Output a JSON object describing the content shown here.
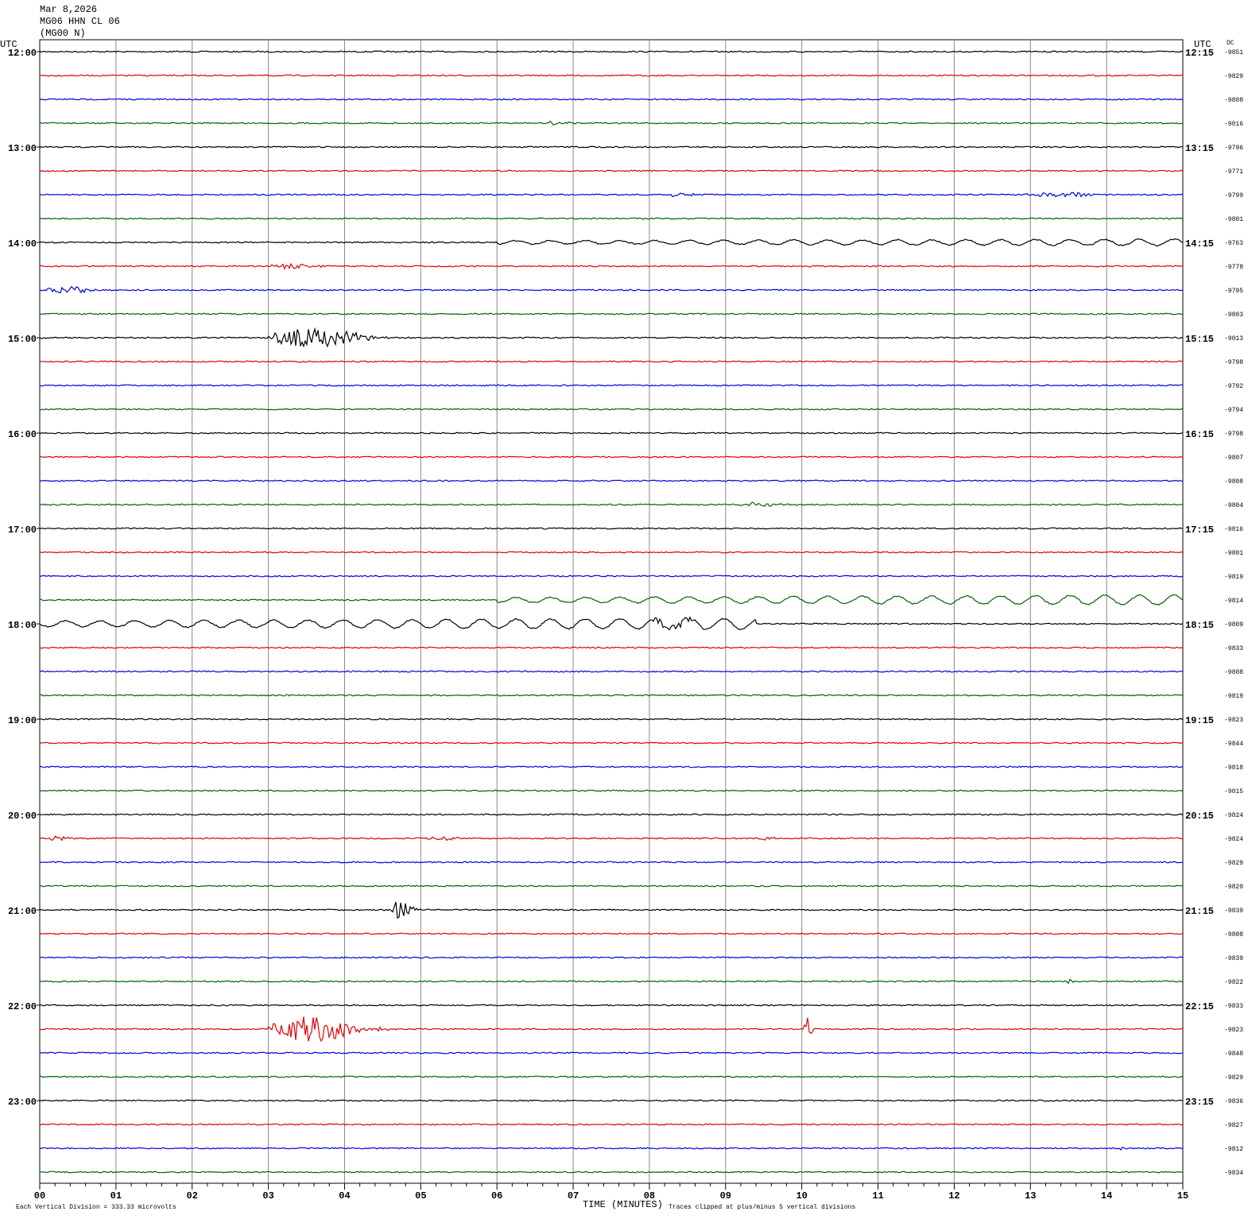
{
  "header": {
    "lines": [
      "Mar 8,2026",
      "MG06 HHN CL 06",
      "(MG00 N)"
    ],
    "utc_left": "UTC",
    "utc_right": "UTC",
    "dc": "DC"
  },
  "left_labels": [
    "12:00",
    "13:00",
    "14:00",
    "15:00",
    "16:00",
    "17:00",
    "18:00",
    "19:00",
    "20:00",
    "21:00",
    "22:00",
    "23:00"
  ],
  "right_labels": [
    "12:15",
    "13:15",
    "14:15",
    "15:15",
    "16:15",
    "17:15",
    "18:15",
    "19:15",
    "20:15",
    "21:15",
    "22:15",
    "23:15"
  ],
  "dc_values": [
    "-9851",
    "-9829",
    "-9808",
    "-9016",
    "-9796",
    "-9771",
    "-9799",
    "-9801",
    "-9763",
    "-9778",
    "-9795",
    "-9803",
    "-9013",
    "-9798",
    "-9792",
    "-9794",
    "-9798",
    "-9807",
    "-9808",
    "-9804",
    "-9816",
    "-9801",
    "-9819",
    "-9814",
    "-9809",
    "-9833",
    "-9808",
    "-9819",
    "-9823",
    "-9844",
    "-9818",
    "-9015",
    "-9824",
    "-9824",
    "-9829",
    "-9820",
    "-9839",
    "-9808",
    "-9839",
    "-9822",
    "-9833",
    "-9823",
    "-9848",
    "-9829",
    "-9836",
    "-9827",
    "-9812",
    "-9834"
  ],
  "x_ticks": [
    "00",
    "01",
    "02",
    "03",
    "04",
    "05",
    "06",
    "07",
    "08",
    "09",
    "10",
    "11",
    "12",
    "13",
    "14",
    "15"
  ],
  "x_label": "TIME (MINUTES)",
  "footer_left": "Each Vertical Division =  333.33 microvolts",
  "footer_right": "Traces clipped at plus/minus 5 vertical divisions"
}
